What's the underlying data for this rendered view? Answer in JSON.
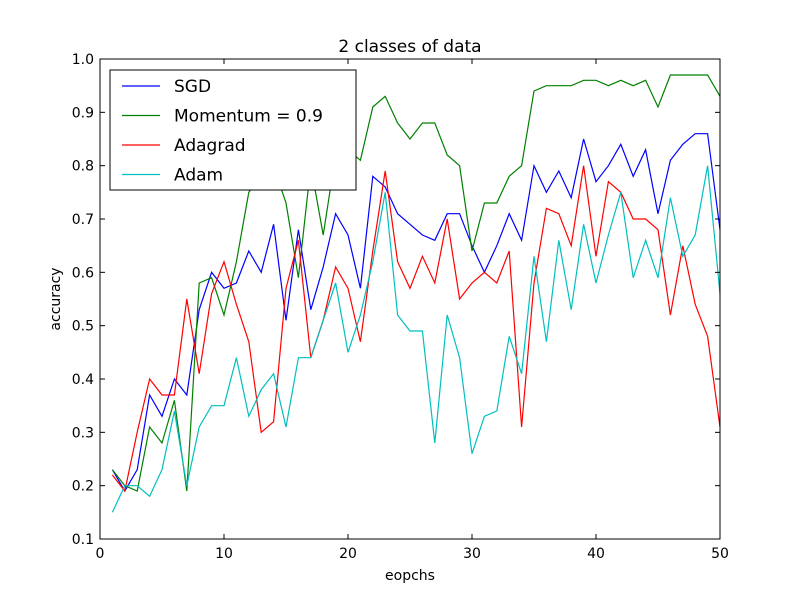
{
  "chart_data": {
    "type": "line",
    "title": "2 classes of data",
    "xlabel": "eopchs",
    "ylabel": "accuracy",
    "xlim": [
      0,
      50
    ],
    "ylim": [
      0.1,
      1.0
    ],
    "xticks": [
      0,
      10,
      20,
      30,
      40,
      50
    ],
    "yticks": [
      0.1,
      0.2,
      0.3,
      0.4,
      0.5,
      0.6,
      0.7,
      0.8,
      0.9,
      1.0
    ],
    "grid": false,
    "legend_position": "top-left",
    "x": [
      1,
      2,
      3,
      4,
      5,
      6,
      7,
      8,
      9,
      10,
      11,
      12,
      13,
      14,
      15,
      16,
      17,
      18,
      19,
      20,
      21,
      22,
      23,
      24,
      25,
      26,
      27,
      28,
      29,
      30,
      31,
      32,
      33,
      34,
      35,
      36,
      37,
      38,
      39,
      40,
      41,
      42,
      43,
      44,
      45,
      46,
      47,
      48,
      49,
      50
    ],
    "series": [
      {
        "name": "SGD",
        "color": "#0000ff",
        "values": [
          0.23,
          0.19,
          0.23,
          0.37,
          0.33,
          0.4,
          0.37,
          0.53,
          0.6,
          0.57,
          0.58,
          0.64,
          0.6,
          0.69,
          0.51,
          0.68,
          0.53,
          0.61,
          0.71,
          0.67,
          0.57,
          0.78,
          0.76,
          0.71,
          0.69,
          0.67,
          0.66,
          0.71,
          0.71,
          0.65,
          0.6,
          0.65,
          0.71,
          0.66,
          0.8,
          0.75,
          0.79,
          0.74,
          0.85,
          0.77,
          0.8,
          0.84,
          0.78,
          0.83,
          0.71,
          0.81,
          0.84,
          0.86,
          0.86,
          0.68
        ]
      },
      {
        "name": "Momentum = 0.9",
        "color": "#008000",
        "values": [
          0.23,
          0.2,
          0.19,
          0.31,
          0.28,
          0.36,
          0.19,
          0.58,
          0.59,
          0.52,
          0.62,
          0.75,
          0.78,
          0.8,
          0.73,
          0.59,
          0.8,
          0.67,
          0.82,
          0.83,
          0.81,
          0.91,
          0.93,
          0.88,
          0.85,
          0.88,
          0.88,
          0.82,
          0.8,
          0.64,
          0.73,
          0.73,
          0.78,
          0.8,
          0.94,
          0.95,
          0.95,
          0.95,
          0.96,
          0.96,
          0.95,
          0.96,
          0.95,
          0.96,
          0.91,
          0.97,
          0.97,
          0.97,
          0.97,
          0.93
        ]
      },
      {
        "name": "Adagrad",
        "color": "#ff0000",
        "values": [
          0.22,
          0.19,
          0.3,
          0.4,
          0.37,
          0.37,
          0.55,
          0.41,
          0.56,
          0.62,
          0.54,
          0.47,
          0.3,
          0.32,
          0.57,
          0.66,
          0.44,
          0.51,
          0.61,
          0.57,
          0.47,
          0.64,
          0.79,
          0.62,
          0.57,
          0.63,
          0.58,
          0.7,
          0.55,
          0.58,
          0.6,
          0.58,
          0.64,
          0.31,
          0.58,
          0.72,
          0.71,
          0.65,
          0.8,
          0.63,
          0.77,
          0.75,
          0.7,
          0.7,
          0.68,
          0.52,
          0.65,
          0.54,
          0.48,
          0.31
        ]
      },
      {
        "name": "Adam",
        "color": "#00bfbf",
        "values": [
          0.15,
          0.2,
          0.2,
          0.18,
          0.23,
          0.34,
          0.2,
          0.31,
          0.35,
          0.35,
          0.44,
          0.33,
          0.38,
          0.41,
          0.31,
          0.44,
          0.44,
          0.51,
          0.58,
          0.45,
          0.52,
          0.62,
          0.75,
          0.52,
          0.49,
          0.49,
          0.28,
          0.52,
          0.44,
          0.26,
          0.33,
          0.34,
          0.48,
          0.41,
          0.63,
          0.47,
          0.66,
          0.53,
          0.69,
          0.58,
          0.67,
          0.75,
          0.59,
          0.66,
          0.59,
          0.74,
          0.63,
          0.67,
          0.8,
          0.56
        ]
      }
    ]
  }
}
